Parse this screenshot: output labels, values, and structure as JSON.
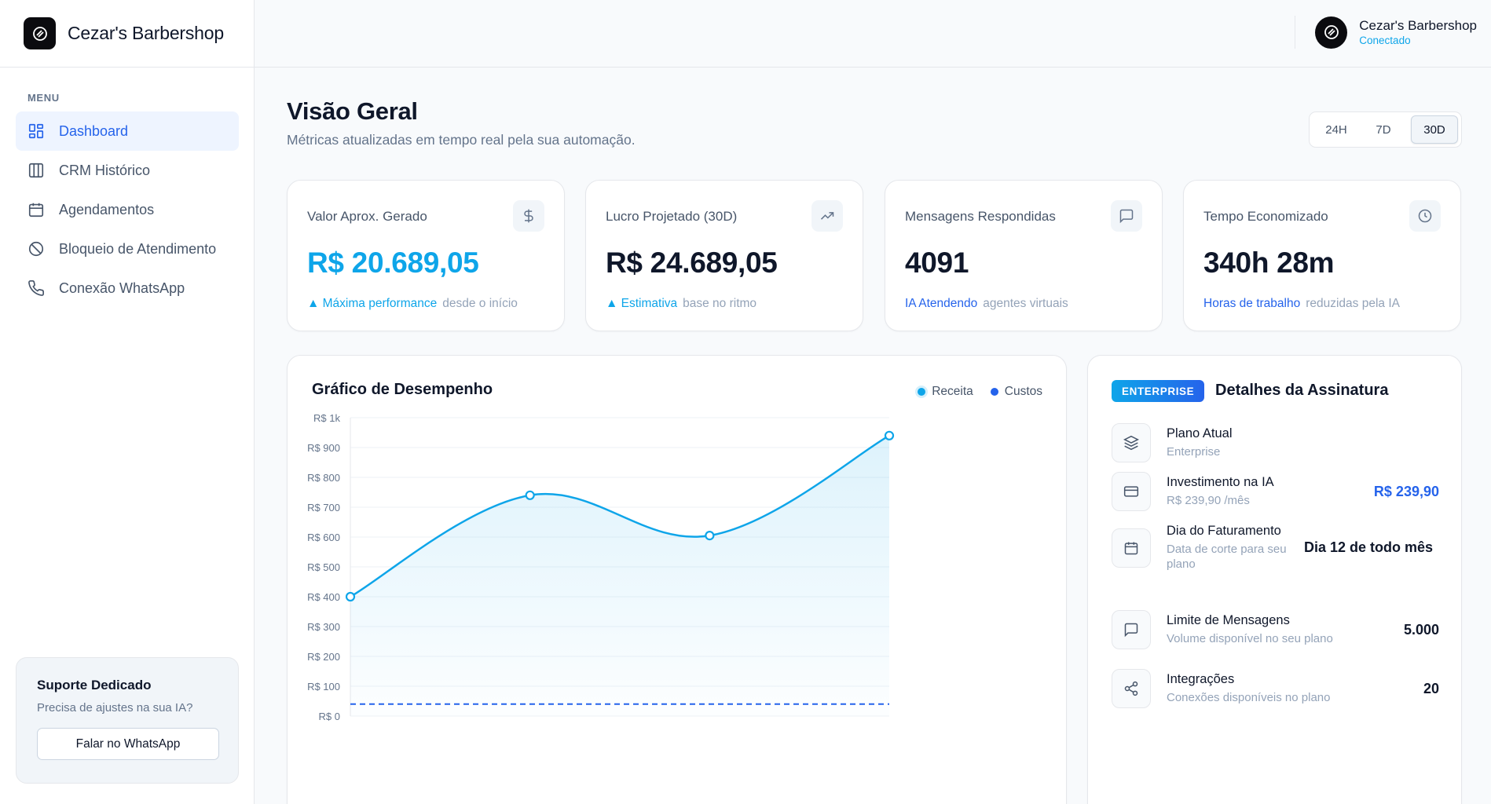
{
  "brand": {
    "name": "Cezar's Barbershop"
  },
  "sidebar": {
    "menu_label": "MENU",
    "items": [
      {
        "label": "Dashboard",
        "icon": "dashboard-icon",
        "active": true
      },
      {
        "label": "CRM Histórico",
        "icon": "columns-icon"
      },
      {
        "label": "Agendamentos",
        "icon": "calendar-icon"
      },
      {
        "label": "Bloqueio de Atendimento",
        "icon": "block-icon"
      },
      {
        "label": "Conexão WhatsApp",
        "icon": "phone-icon"
      }
    ],
    "support": {
      "title": "Suporte Dedicado",
      "subtitle": "Precisa de ajustes na sua IA?",
      "button": "Falar no WhatsApp"
    }
  },
  "topbar": {
    "account_name": "Cezar's Barbershop",
    "status": "Conectado"
  },
  "header": {
    "title": "Visão Geral",
    "subtitle": "Métricas atualizadas em tempo real pela sua automação.",
    "ranges": [
      "24H",
      "7D",
      "30D"
    ],
    "selected_range": "30D"
  },
  "kpis": [
    {
      "label": "Valor Aprox. Gerado",
      "value": "R$ 20.689,05",
      "highlight": "▲ Máxima performance",
      "muted": "desde o início",
      "icon": "dollar-icon"
    },
    {
      "label": "Lucro Projetado (30D)",
      "value": "R$ 24.689,05",
      "highlight": "▲ Estimativa",
      "muted": "base no ritmo",
      "icon": "trending-up-icon"
    },
    {
      "label": "Mensagens Respondidas",
      "value": "4091",
      "highlight": "IA Atendendo",
      "muted": "agentes virtuais",
      "icon": "message-icon"
    },
    {
      "label": "Tempo Economizado",
      "value": "340h 28m",
      "highlight": "Horas de trabalho",
      "muted": "reduzidas pela IA",
      "icon": "clock-icon"
    }
  ],
  "chart": {
    "title": "Gráfico de Desempenho",
    "legend": {
      "receita": "Receita",
      "custos": "Custos"
    }
  },
  "chart_data": {
    "type": "area",
    "title": "Gráfico de Desempenho",
    "y_ticks": [
      "R$ 0",
      "R$ 100",
      "R$ 200",
      "R$ 300",
      "R$ 400",
      "R$ 500",
      "R$ 600",
      "R$ 700",
      "R$ 800",
      "R$ 900",
      "R$ 1k"
    ],
    "ylim": [
      0,
      1000
    ],
    "grid": true,
    "legend_placement": "top-right",
    "series": [
      {
        "name": "Receita",
        "values": [
          400,
          740,
          605,
          940
        ],
        "color": "#0ea5e9"
      },
      {
        "name": "Custos",
        "values": [
          40,
          40,
          40,
          40
        ],
        "color": "#2563eb"
      }
    ]
  },
  "subscription": {
    "badge": "ENTERPRISE",
    "title": "Detalhes da Assinatura",
    "rows": [
      {
        "title": "Plano Atual",
        "sub": "Enterprise",
        "value": "",
        "icon": "layers-icon"
      },
      {
        "title": "Investimento na IA",
        "sub": "R$ 239,90 /mês",
        "value": "R$ 239,90",
        "icon": "credit-card-icon"
      },
      {
        "title": "Dia do Faturamento",
        "sub": "Data de corte para seu plano",
        "value": "Dia 12 de todo mês",
        "icon": "calendar-icon"
      },
      {
        "title": "Limite de Mensagens",
        "sub": "Volume disponível no seu plano",
        "value": "5.000",
        "icon": "message-icon"
      },
      {
        "title": "Integrações",
        "sub": "Conexões disponíveis no plano",
        "value": "20",
        "icon": "share-icon"
      }
    ]
  }
}
